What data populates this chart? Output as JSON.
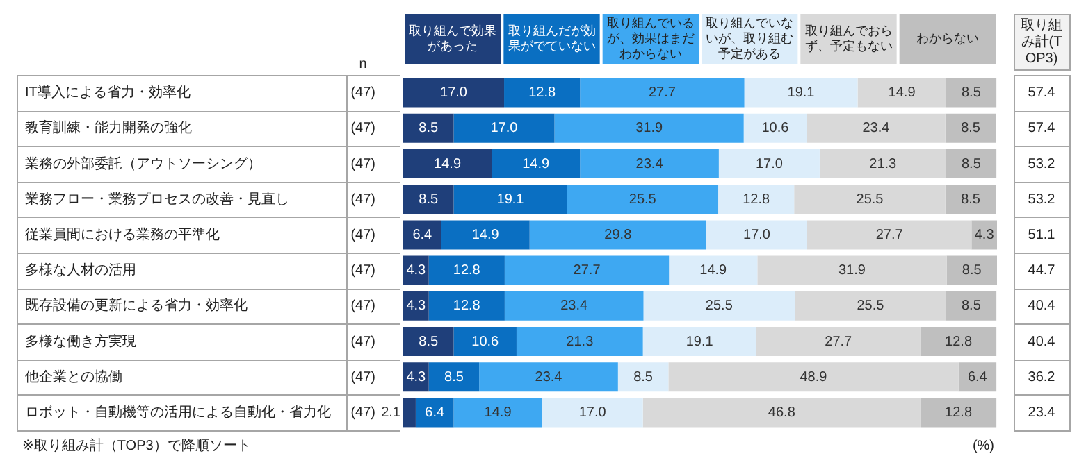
{
  "chart_data": {
    "type": "bar",
    "orientation": "horizontal",
    "stacked": true,
    "legend": "top",
    "categories": [
      "IT導入による省力・効率化",
      "教育訓練・能力開発の強化",
      "業務の外部委託（アウトソーシング）",
      "業務フロー・業務プロセスの改善・見直し",
      "従業員間における業務の平準化",
      "多様な人材の活用",
      "既存設備の更新による省力・効率化",
      "多様な働き方実現",
      "他企業との協働",
      "ロボット・自動機等の活用による自動化・省力化"
    ],
    "y2label": "n",
    "y2_categories": [
      "(47)",
      "(47)",
      "(47)",
      "(47)",
      "(47)",
      "(47)",
      "(47)",
      "(47)",
      "(47)",
      "(47)"
    ],
    "series": [
      {
        "name": "取り組んで効果があった",
        "color": "#1f3f7a",
        "values": [
          17.0,
          8.5,
          14.9,
          8.5,
          6.4,
          4.3,
          4.3,
          8.5,
          4.3,
          2.1
        ],
        "value_labels": [
          "17.0",
          "8.5",
          "14.9",
          "8.5",
          "6.4",
          "4.3",
          "4.3",
          "8.5",
          "4.3",
          "2.1"
        ]
      },
      {
        "name": "取り組んだが効果がでていない",
        "color": "#0a6fc2",
        "values": [
          12.8,
          17.0,
          14.9,
          19.1,
          14.9,
          12.8,
          12.8,
          10.6,
          8.5,
          6.4
        ],
        "value_labels": [
          "12.8",
          "17.0",
          "14.9",
          "19.1",
          "14.9",
          "12.8",
          "12.8",
          "10.6",
          "8.5",
          "6.4"
        ]
      },
      {
        "name": "取り組んでいるが、効果はまだわからない",
        "color": "#3ea8f2",
        "values": [
          27.7,
          31.9,
          23.4,
          25.5,
          29.8,
          27.7,
          23.4,
          21.3,
          23.4,
          14.9
        ],
        "value_labels": [
          "27.7",
          "31.9",
          "23.4",
          "25.5",
          "29.8",
          "27.7",
          "23.4",
          "21.3",
          "23.4",
          "14.9"
        ]
      },
      {
        "name": "取り組んでいないが、取り組む予定がある",
        "color": "#dcedfa",
        "values": [
          19.1,
          10.6,
          17.0,
          12.8,
          17.0,
          14.9,
          25.5,
          19.1,
          8.5,
          17.0
        ],
        "value_labels": [
          "19.1",
          "10.6",
          "17.0",
          "12.8",
          "17.0",
          "14.9",
          "25.5",
          "19.1",
          "8.5",
          "17.0"
        ]
      },
      {
        "name": "取り組んでおらず、予定もない",
        "color": "#d9d9d9",
        "values": [
          14.9,
          23.4,
          21.3,
          25.5,
          27.7,
          31.9,
          25.5,
          27.7,
          48.9,
          46.8
        ],
        "value_labels": [
          "14.9",
          "23.4",
          "21.3",
          "25.5",
          "27.7",
          "31.9",
          "25.5",
          "27.7",
          "48.9",
          "46.8"
        ]
      },
      {
        "name": "わからない",
        "color": "#bfbfbf",
        "values": [
          8.5,
          8.5,
          8.5,
          8.5,
          4.3,
          8.5,
          8.5,
          12.8,
          6.4,
          12.8
        ],
        "value_labels": [
          "8.5",
          "8.5",
          "8.5",
          "8.5",
          "4.3",
          "8.5",
          "8.5",
          "12.8",
          "6.4",
          "12.8"
        ]
      }
    ],
    "annotations": [
      "取り組み計(TOP3)",
      "※取り組み計（TOP3）で降順ソート",
      "(%)",
      "57.4",
      "57.4",
      "53.2",
      "53.2",
      "51.1",
      "44.7",
      "40.4",
      "40.4",
      "36.2",
      "23.4"
    ]
  }
}
